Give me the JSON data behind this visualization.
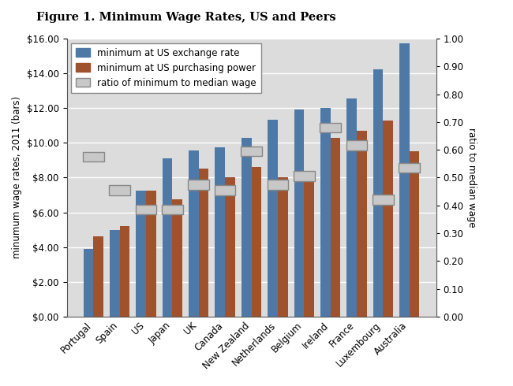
{
  "title": "Figure 1. Minimum Wage Rates, US and Peers",
  "ylabel_left": "minumum wage rates, 2011 (bars)",
  "ylabel_right": "ratio to median wage",
  "categories": [
    "Portugal",
    "Spain",
    "US",
    "Japan",
    "UK",
    "Canada",
    "New Zealand",
    "Netherlands",
    "Belgium",
    "Ireland",
    "France",
    "Luxembourg",
    "Australia"
  ],
  "exchange_rate": [
    3.9,
    5.0,
    7.25,
    9.1,
    9.55,
    9.75,
    10.3,
    11.35,
    11.9,
    12.0,
    12.55,
    14.25,
    15.75
  ],
  "purchasing_power": [
    4.6,
    5.2,
    7.25,
    6.75,
    8.5,
    8.0,
    8.6,
    8.0,
    8.0,
    10.3,
    10.7,
    11.3,
    9.5
  ],
  "ratio": [
    0.575,
    0.455,
    0.385,
    0.385,
    0.475,
    0.455,
    0.595,
    0.475,
    0.505,
    0.68,
    0.615,
    0.42,
    0.535
  ],
  "bar_color_blue": "#4E79A7",
  "bar_color_red": "#A0522D",
  "ratio_box_face": "#C8C8C8",
  "ratio_box_edge": "#888888",
  "background_color": "#DCDCDC",
  "fig_background": "#F0F0F0",
  "ylim_left": [
    0,
    16
  ],
  "ylim_right": [
    0,
    1.0
  ],
  "yticks_left": [
    0,
    2,
    4,
    6,
    8,
    10,
    12,
    14,
    16
  ],
  "yticks_right": [
    0.0,
    0.1,
    0.2,
    0.3,
    0.4,
    0.5,
    0.6,
    0.7,
    0.8,
    0.9,
    1.0
  ],
  "legend_exchange": "minimum at US exchange rate",
  "legend_purchasing": "minimum at US purchasing power",
  "legend_ratio": "ratio of minimum to median wage"
}
